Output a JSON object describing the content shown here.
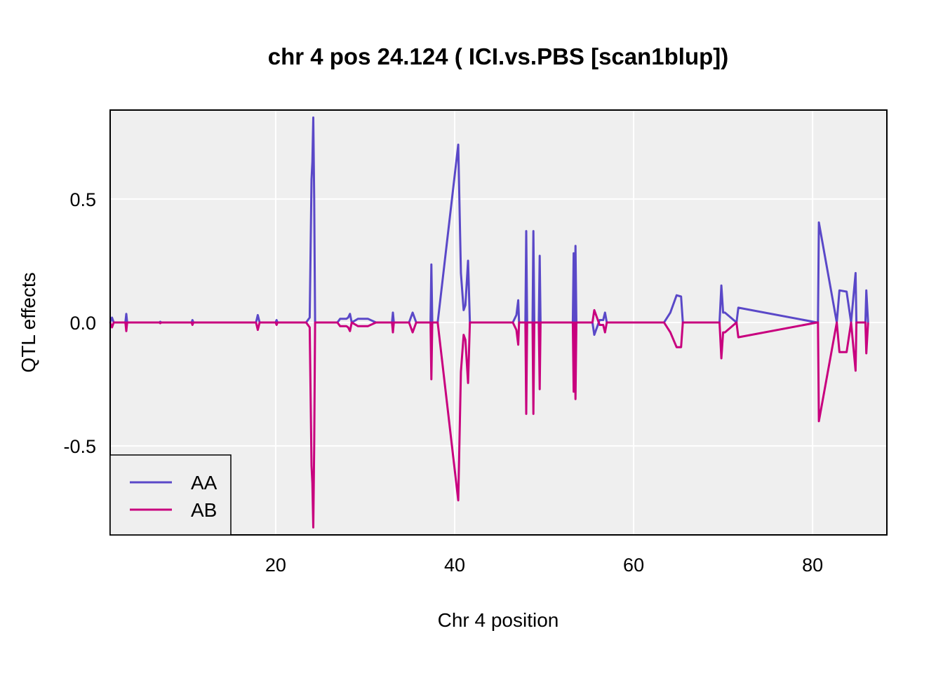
{
  "chart_data": {
    "type": "line",
    "title": "chr 4 pos 24.124 ( ICI.vs.PBS  [scan1blup])",
    "xlabel": "Chr 4 position",
    "ylabel": "QTL effects",
    "xlim": [
      1.5,
      88.3
    ],
    "ylim": [
      -0.86,
      0.86
    ],
    "x_ticks": [
      20,
      40,
      60,
      80
    ],
    "x_tick_labels": [
      "20",
      "40",
      "60",
      "80"
    ],
    "y_ticks": [
      0.5,
      0.0,
      -0.5
    ],
    "y_tick_labels": [
      "0.5",
      "0.0",
      "-0.5"
    ],
    "grid": true,
    "legend_position": "bottom-left",
    "series": [
      {
        "name": "AA",
        "color": "#5a48c8",
        "x": [
          1.5,
          1.7,
          1.9,
          3.2,
          3.3,
          3.4,
          7.0,
          7.1,
          7.2,
          10.6,
          10.7,
          10.8,
          17.8,
          18.0,
          18.2,
          20.0,
          20.1,
          20.2,
          23.4,
          23.8,
          24.0,
          24.1,
          24.2,
          24.3,
          24.4,
          26.9,
          27.2,
          27.6,
          27.9,
          28.1,
          28.3,
          28.5,
          29.2,
          29.6,
          30.3,
          31.2,
          33.0,
          33.1,
          33.2,
          34.9,
          35.3,
          35.7,
          35.9,
          37.3,
          37.4,
          37.5,
          38.0,
          38.1,
          40.4,
          40.7,
          41.0,
          41.2,
          41.5,
          41.7,
          46.5,
          46.9,
          47.1,
          47.2,
          47.9,
          48.0,
          48.1,
          48.7,
          48.8,
          48.9,
          49.4,
          49.5,
          49.6,
          53.2,
          53.3,
          53.4,
          53.5,
          53.6,
          55.4,
          55.6,
          56.2,
          56.6,
          56.8,
          57.0,
          63.4,
          64.1,
          64.8,
          65.3,
          65.5,
          69.6,
          69.8,
          70.0,
          70.2,
          71.5,
          71.7,
          80.5,
          80.6,
          80.7,
          82.7,
          83.0,
          83.8,
          84.3,
          84.8,
          84.9,
          85.9,
          86.0,
          86.2
        ],
        "values": [
          0.0,
          0.02,
          0.0,
          0.0,
          0.035,
          0.0,
          0.0,
          0.003,
          0.0,
          0.0,
          0.01,
          0.0,
          0.0,
          0.03,
          0.0,
          0.0,
          0.01,
          0.0,
          0.0,
          0.02,
          0.58,
          0.65,
          0.83,
          0.5,
          0.0,
          0.0,
          0.015,
          0.015,
          0.015,
          0.02,
          0.035,
          0.0,
          0.015,
          0.015,
          0.015,
          0.0,
          0.0,
          0.04,
          0.0,
          0.0,
          0.04,
          0.0,
          0.0,
          0.0,
          0.235,
          0.0,
          0.0,
          0.0,
          0.72,
          0.2,
          0.05,
          0.07,
          0.25,
          0.0,
          0.0,
          0.03,
          0.09,
          0.0,
          0.0,
          0.37,
          0.0,
          0.0,
          0.37,
          0.0,
          0.0,
          0.27,
          0.0,
          0.0,
          0.28,
          0.0,
          0.31,
          0.0,
          0.0,
          -0.05,
          0.01,
          0.01,
          0.04,
          0.0,
          0.0,
          0.04,
          0.11,
          0.105,
          0.0,
          0.0,
          0.15,
          0.04,
          0.04,
          0.0,
          0.06,
          0.0,
          0.0,
          0.405,
          0.0,
          0.13,
          0.125,
          0.0,
          0.2,
          0.0,
          0.0,
          0.13,
          0.0
        ]
      },
      {
        "name": "AB",
        "color": "#c8007e",
        "x": [
          1.5,
          1.7,
          1.9,
          3.2,
          3.3,
          3.4,
          7.0,
          7.1,
          7.2,
          10.6,
          10.7,
          10.8,
          17.8,
          18.0,
          18.2,
          20.0,
          20.1,
          20.2,
          23.4,
          23.8,
          24.0,
          24.1,
          24.2,
          24.3,
          24.4,
          26.9,
          27.2,
          27.6,
          27.9,
          28.1,
          28.3,
          28.5,
          29.2,
          29.6,
          30.3,
          31.2,
          33.0,
          33.1,
          33.2,
          34.9,
          35.3,
          35.7,
          35.9,
          37.3,
          37.4,
          37.5,
          38.0,
          38.1,
          40.4,
          40.7,
          41.0,
          41.2,
          41.5,
          41.7,
          46.5,
          46.9,
          47.1,
          47.2,
          47.9,
          48.0,
          48.1,
          48.7,
          48.8,
          48.9,
          49.4,
          49.5,
          49.6,
          53.2,
          53.3,
          53.4,
          53.5,
          53.6,
          55.4,
          55.6,
          56.2,
          56.6,
          56.8,
          57.0,
          63.4,
          64.1,
          64.8,
          65.3,
          65.5,
          69.6,
          69.8,
          70.0,
          70.2,
          71.5,
          71.7,
          80.5,
          80.6,
          80.7,
          82.7,
          83.0,
          83.8,
          84.3,
          84.8,
          84.9,
          85.9,
          86.0,
          86.2
        ],
        "values": [
          0.0,
          -0.02,
          0.0,
          0.0,
          -0.035,
          0.0,
          0.0,
          -0.003,
          0.0,
          0.0,
          -0.01,
          0.0,
          0.0,
          -0.03,
          0.0,
          0.0,
          -0.01,
          0.0,
          0.0,
          -0.02,
          -0.58,
          -0.65,
          -0.83,
          -0.5,
          0.0,
          0.0,
          -0.015,
          -0.015,
          -0.015,
          -0.02,
          -0.035,
          0.0,
          -0.015,
          -0.015,
          -0.015,
          0.0,
          0.0,
          -0.04,
          0.0,
          0.0,
          -0.04,
          0.0,
          0.0,
          0.0,
          -0.23,
          0.0,
          0.0,
          0.0,
          -0.72,
          -0.2,
          -0.05,
          -0.07,
          -0.245,
          0.0,
          0.0,
          -0.03,
          -0.09,
          0.0,
          0.0,
          -0.37,
          0.0,
          0.0,
          -0.37,
          0.0,
          0.0,
          -0.27,
          0.0,
          0.0,
          -0.28,
          0.0,
          -0.31,
          0.0,
          0.0,
          0.05,
          -0.01,
          -0.01,
          -0.04,
          0.0,
          0.0,
          -0.04,
          -0.1,
          -0.1,
          0.0,
          0.0,
          -0.145,
          -0.04,
          -0.04,
          0.0,
          -0.06,
          0.0,
          0.0,
          -0.4,
          0.0,
          -0.12,
          -0.12,
          0.0,
          -0.195,
          0.0,
          0.0,
          -0.125,
          0.0
        ]
      }
    ]
  }
}
